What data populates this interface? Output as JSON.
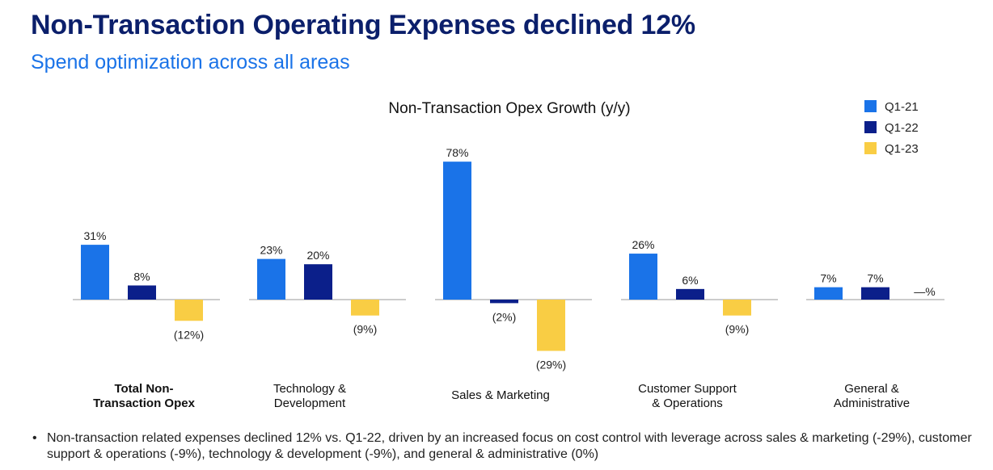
{
  "header": {
    "title": "Non-Transaction Operating Expenses declined 12%",
    "subtitle": "Spend optimization across all areas"
  },
  "chart_data": {
    "type": "bar",
    "title": "Non-Transaction Opex Growth (y/y)",
    "xlabel": "",
    "ylabel": "",
    "categories": [
      "Total Non-\nTransaction Opex",
      "Technology &\nDevelopment",
      "Sales & Marketing",
      "Customer Support\n& Operations",
      "General &\nAdministrative"
    ],
    "series": [
      {
        "name": "Q1-21",
        "color": "#1a73e8",
        "values": [
          31,
          23,
          78,
          26,
          7
        ],
        "labels": [
          "31%",
          "23%",
          "78%",
          "26%",
          "7%"
        ]
      },
      {
        "name": "Q1-22",
        "color": "#0b1f8a",
        "values": [
          8,
          20,
          -2,
          6,
          7
        ],
        "labels": [
          "8%",
          "20%",
          "(2%)",
          "6%",
          "7%"
        ]
      },
      {
        "name": "Q1-23",
        "color": "#f9cd44",
        "values": [
          -12,
          -9,
          -29,
          -9,
          0
        ],
        "labels": [
          "(12%)",
          "(9%)",
          "(29%)",
          "(9%)",
          "—%"
        ]
      }
    ],
    "grid": false,
    "legend_position": "top-right"
  },
  "footnote": {
    "bullet": "•",
    "text": "Non-transaction related expenses declined 12% vs. Q1-22, driven by an increased focus on cost control with leverage across sales & marketing (-29%), customer support & operations (-9%), technology & development (-9%), and general & administrative (0%)"
  }
}
